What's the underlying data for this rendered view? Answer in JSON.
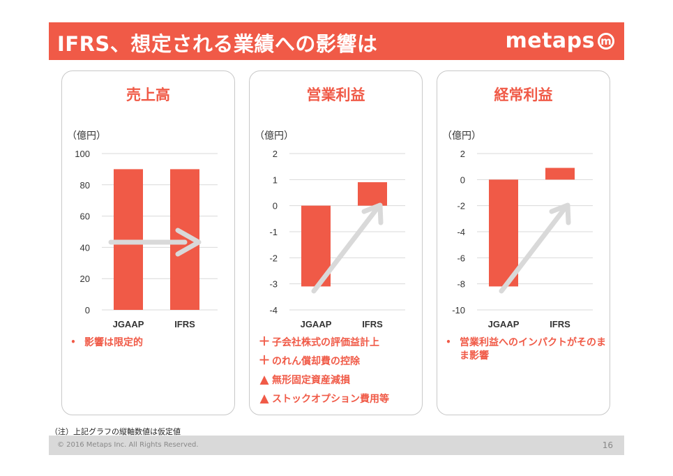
{
  "title": "IFRS、想定される業績への影響は",
  "logo": {
    "text": "metaps",
    "mark": "m"
  },
  "accent_color": "#f05a47",
  "arrow_color": "#d9d9d9",
  "panels": [
    {
      "title": "売上高",
      "unit": "（億円）",
      "chart_data": {
        "type": "bar",
        "categories": [
          "JGAAP",
          "IFRS"
        ],
        "values": [
          90,
          90
        ],
        "ylim": [
          0,
          100
        ],
        "ticks": [
          "100",
          "80",
          "60",
          "40",
          "20",
          "0"
        ],
        "arrow": "horizontal"
      },
      "bullets": [
        {
          "mark": "•",
          "text": "影響は限定的"
        }
      ]
    },
    {
      "title": "営業利益",
      "unit": "（億円）",
      "chart_data": {
        "type": "bar",
        "categories": [
          "JGAAP",
          "IFRS"
        ],
        "values": [
          -3.1,
          0.9
        ],
        "ylim": [
          -4,
          2
        ],
        "ticks": [
          "2",
          "1",
          "0",
          "-1",
          "-2",
          "-3",
          "-4"
        ],
        "arrow": "diagonal"
      },
      "bullets": [
        {
          "mark": "＋",
          "text": "子会社株式の評価益計上"
        },
        {
          "mark": "＋",
          "text": "のれん償却費の控除"
        },
        {
          "mark": "▲",
          "text": "無形固定資産減損"
        },
        {
          "mark": "▲",
          "text": "ストックオプション費用等"
        }
      ]
    },
    {
      "title": "経常利益",
      "unit": "（億円）",
      "chart_data": {
        "type": "bar",
        "categories": [
          "JGAAP",
          "IFRS"
        ],
        "values": [
          -8.2,
          0.9
        ],
        "ylim": [
          -10,
          2
        ],
        "ticks": [
          "2",
          "0",
          "-2",
          "-4",
          "-6",
          "-8",
          "-10"
        ],
        "arrow": "diagonal"
      },
      "bullets": [
        {
          "mark": "•",
          "text": "営業利益へのインパクトがそのまま影響"
        }
      ]
    }
  ],
  "footnote": "（注）上記グラフの縦軸数値は仮定値",
  "footer": {
    "copyright": "© 2016 Metaps Inc. All Rights Reserved.",
    "page_number": "16"
  }
}
